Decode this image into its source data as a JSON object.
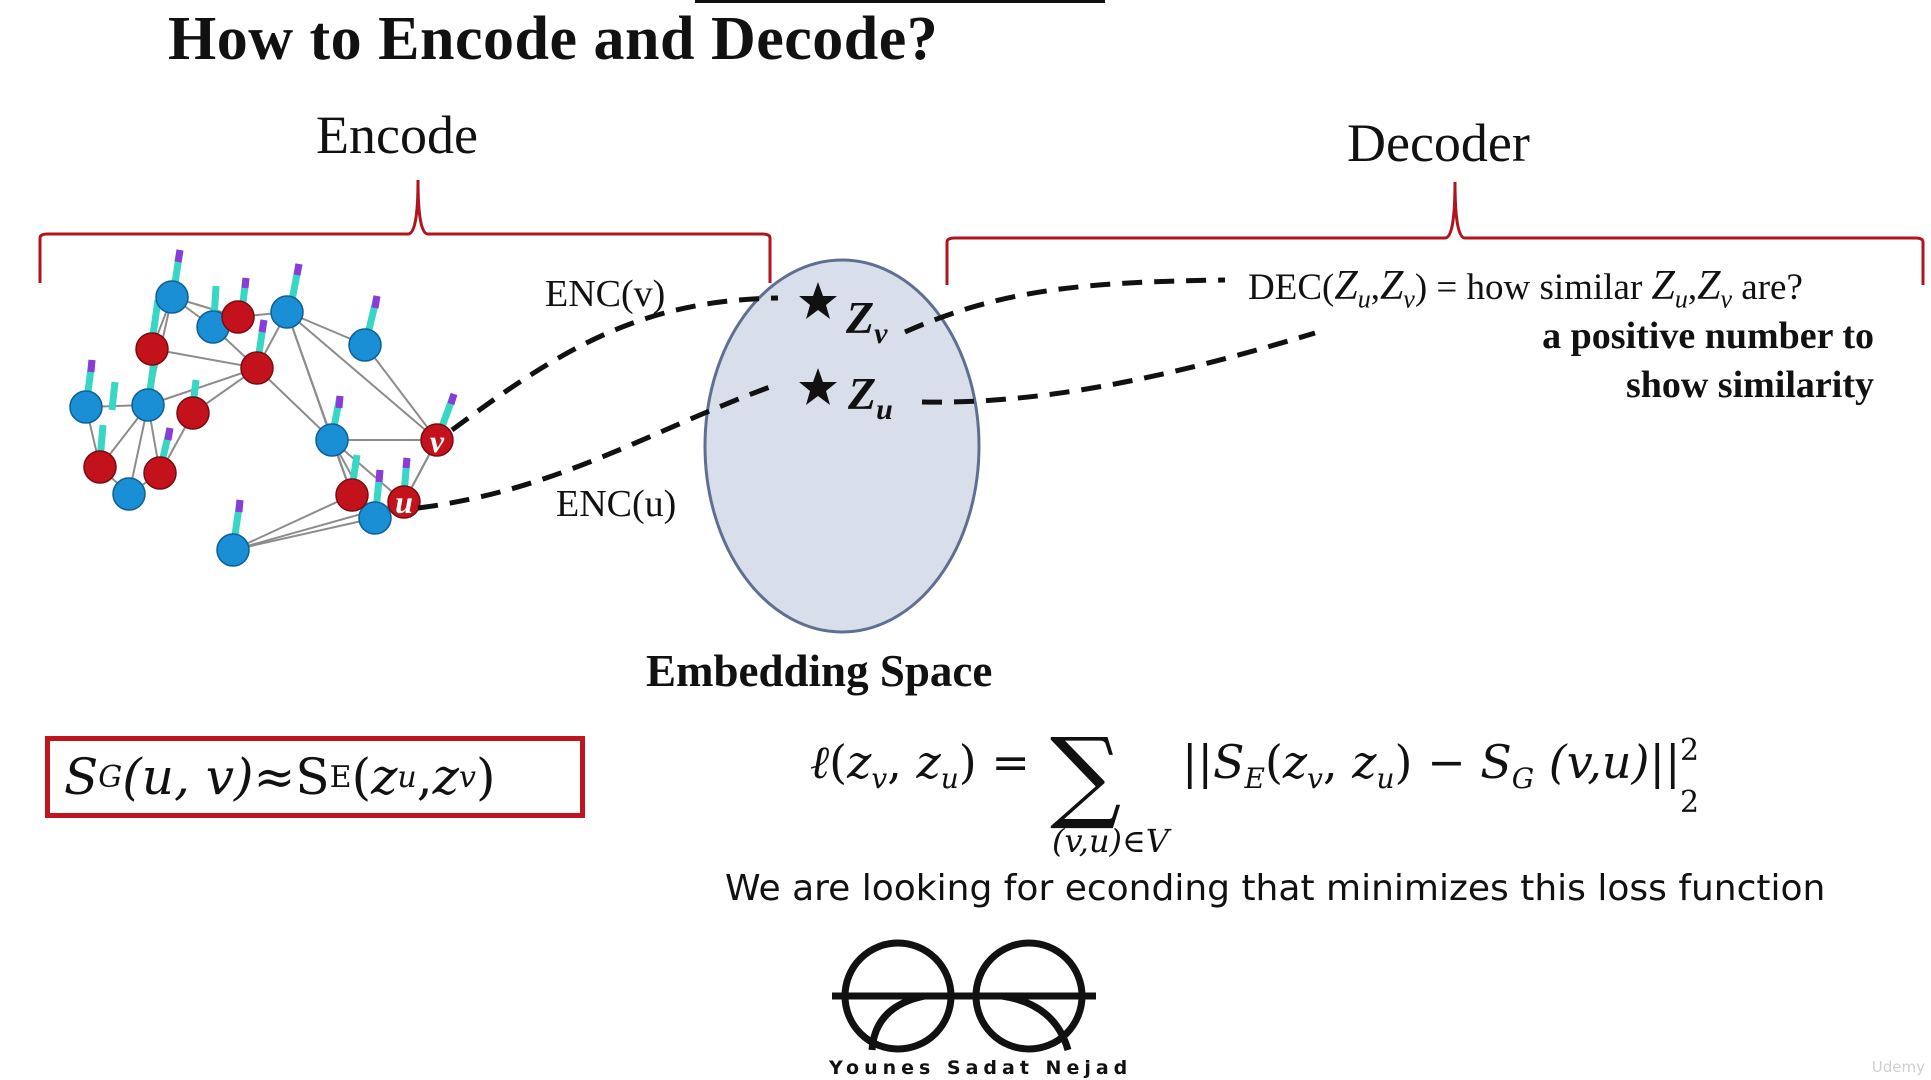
{
  "title": "How to Encode and Decode?",
  "encode_label": "Encode",
  "decoder_label": "Decoder",
  "enc_v_label": "ENC(v)",
  "enc_u_label": "ENC(u)",
  "z_v": {
    "base": "Z",
    "sub": "v"
  },
  "z_u": {
    "base": "Z",
    "sub": "u"
  },
  "embedding_label": "Embedding Space",
  "dec_formula": {
    "prefix": "DEC(",
    "z": "Z",
    "sub_u": "u",
    "sub_v": "v",
    "comma": ",",
    "close_eq": ") = how similar ",
    "suffix": " are?"
  },
  "dec_note_line1": "a positive number to",
  "dec_note_line2": "show similarity",
  "similarity_box": {
    "s": "S",
    "sub_g": "G",
    "args_g": "(u, v)",
    "approx": " ≈ ",
    "sub_e": "E",
    "open": "(",
    "z": "z",
    "sub_u": "u",
    "comma": ", ",
    "sub_v": "v",
    "close": ")"
  },
  "loss": {
    "ell": "ℓ",
    "open": "(",
    "z": "z",
    "sub_v": "v",
    "comma": ", ",
    "sub_u": "u",
    "close_eq": ") =",
    "sigma": "∑",
    "sum_sub": "(v,u)∈V",
    "norm_open": "||",
    "s": "S",
    "sub_e": "E",
    "sub_g": "G",
    "minus": ") − ",
    "args_vu": " (v,u)",
    "norm_close": "||",
    "sup": "2",
    "low": "2"
  },
  "caption": "We are looking for econding that minimizes this loss function",
  "logo_text": "Younes Sadat Nejad",
  "watermark": "Udemy",
  "node_labels": {
    "v": "v",
    "u": "u"
  },
  "colors": {
    "bracket": "#b0141f",
    "red_node": "#c4121c",
    "blue_node": "#1a8fd6",
    "ellipse_fill": "#d9dfea",
    "ellipse_stroke": "#5f6f94",
    "box_border": "#c0141f"
  }
}
